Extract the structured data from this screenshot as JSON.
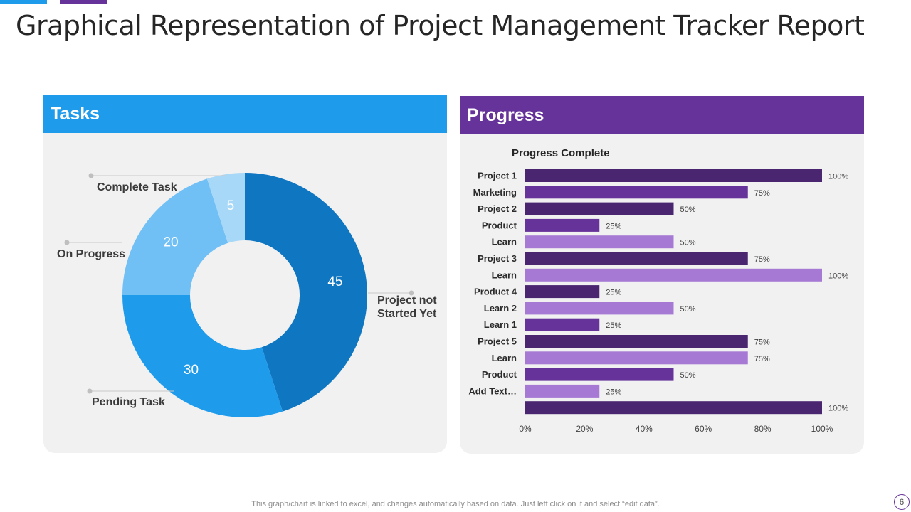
{
  "title": "Graphical Representation of Project Management Tracker Report",
  "tasks_panel": {
    "header": "Tasks"
  },
  "progress_panel": {
    "header": "Progress"
  },
  "footer_note": "This graph/chart is linked to excel, and changes automatically based on data. Just left click on it and select “edit data”.",
  "page_number": "6",
  "colors": {
    "blue": "#1f9bec",
    "purple": "#66339a",
    "donut": [
      "#0f76c2",
      "#1f9bec",
      "#70bff5",
      "#a8d8f8"
    ],
    "bars": [
      "#4a2670",
      "#66339a",
      "#a67ad4"
    ]
  },
  "chart_data": [
    {
      "type": "pie",
      "subtype": "doughnut",
      "title": "Tasks",
      "slices": [
        {
          "label": "Project not Started Yet",
          "value": 45
        },
        {
          "label": "Pending Task",
          "value": 30
        },
        {
          "label": "On Progress",
          "value": 20
        },
        {
          "label": "Complete Task",
          "value": 5
        }
      ],
      "callout_lines": {
        "Project not Started Yet": [
          "Project not",
          "Started Yet"
        ]
      }
    },
    {
      "type": "bar",
      "orientation": "horizontal",
      "title": "Progress Complete",
      "categories": [
        "Project 1",
        "Marketing",
        "Project 2",
        "Product",
        "Learn",
        "Project 3",
        "Learn",
        "Product 4",
        "Learn 2",
        "Learn 1",
        "Project 5",
        "Learn",
        "Product",
        "Add Text…",
        ""
      ],
      "values": [
        100,
        75,
        50,
        25,
        50,
        75,
        100,
        25,
        50,
        25,
        75,
        75,
        50,
        25,
        100
      ],
      "value_labels": [
        "100%",
        "75%",
        "50%",
        "25%",
        "50%",
        "75%",
        "100%",
        "25%",
        "50%",
        "25%",
        "75%",
        "75%",
        "50%",
        "25%",
        "100%"
      ],
      "color_index": [
        0,
        1,
        0,
        1,
        2,
        0,
        2,
        0,
        2,
        1,
        0,
        2,
        1,
        2,
        0
      ],
      "xlim": [
        0,
        100
      ],
      "xticks": [
        0,
        20,
        40,
        60,
        80,
        100
      ],
      "xtick_labels": [
        "0%",
        "20%",
        "40%",
        "60%",
        "80%",
        "100%"
      ]
    }
  ]
}
